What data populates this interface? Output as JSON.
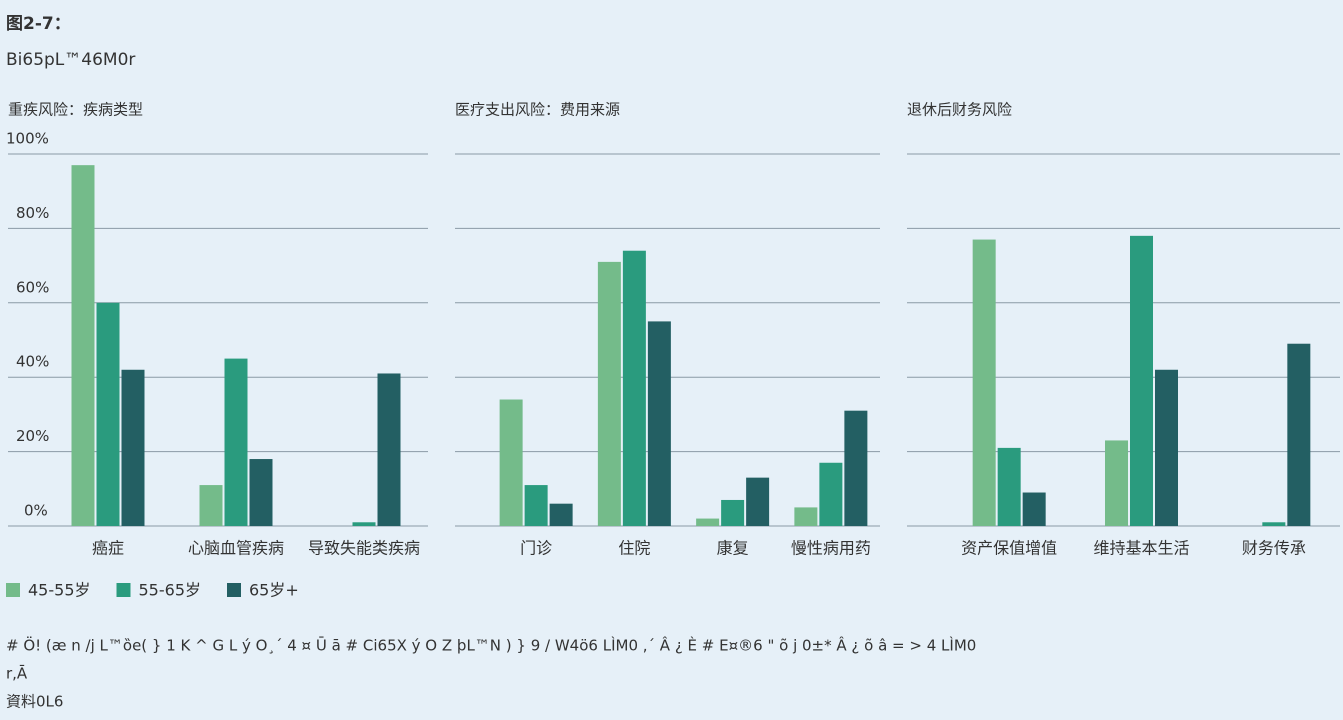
{
  "header": {
    "title": "图2-7：",
    "subtitle": "Bi65pL™46M0r"
  },
  "chart_data": [
    {
      "type": "bar",
      "title": "重疾风险：疾病类型",
      "categories": [
        "癌症",
        "心脑血管疾病",
        "导致失能类疾病"
      ],
      "series": [
        {
          "name": "45-55岁",
          "color": "#74bb8a",
          "values": [
            97,
            11,
            0
          ]
        },
        {
          "name": "55-65岁",
          "color": "#2a9b7e",
          "values": [
            60,
            45,
            1
          ]
        },
        {
          "name": "65岁+",
          "color": "#235f63",
          "values": [
            42,
            18,
            41
          ]
        }
      ],
      "ylim": [
        0,
        100
      ],
      "yticks": [
        {
          "value": 0,
          "label": "0%"
        },
        {
          "value": 20,
          "label": "20%"
        },
        {
          "value": 40,
          "label": "40%"
        },
        {
          "value": 60,
          "label": "60%"
        },
        {
          "value": 80,
          "label": "80%"
        },
        {
          "value": 100,
          "label": "100%"
        }
      ],
      "grid": true,
      "legend": "bottom-left"
    },
    {
      "type": "bar",
      "title": "医疗支出风险：费用来源",
      "categories": [
        "门诊",
        "住院",
        "康复",
        "慢性病用药"
      ],
      "series": [
        {
          "color": "#74bb8a",
          "values": [
            34,
            71,
            2,
            5
          ]
        },
        {
          "color": "#2a9b7e",
          "values": [
            11,
            74,
            7,
            17
          ]
        },
        {
          "color": "#235f63",
          "values": [
            6,
            55,
            13,
            31
          ]
        }
      ],
      "ylim": [
        0,
        100
      ],
      "yticks": [
        0,
        20,
        40,
        60,
        80,
        100
      ],
      "grid": true
    },
    {
      "type": "bar",
      "title": "退休后财务风险",
      "categories": [
        "资产保值增值",
        "维持基本生活",
        "财务传承"
      ],
      "series": [
        {
          "color": "#74bb8a",
          "values": [
            77,
            23,
            0
          ]
        },
        {
          "color": "#2a9b7e",
          "values": [
            21,
            78,
            1
          ]
        },
        {
          "color": "#235f63",
          "values": [
            9,
            42,
            49
          ]
        }
      ],
      "ylim": [
        0,
        100
      ],
      "yticks": [
        0,
        20,
        40,
        60,
        80,
        100
      ],
      "grid": true
    }
  ],
  "footer": {
    "note": "# Ö! (æ n /j L™ȍe( } 1 K ^ G L ý O¸´ 4 ¤ Ū ā # Ci65X ý O Z þL™N ) } 9 / W4ö6 LÌM0 ,´ Â ¿ È # E¤®6 \" õ j 0±* Â ¿ õ â = > 4 LÌM0",
    "note2": "r,Ā",
    "source": "資料0L6"
  }
}
